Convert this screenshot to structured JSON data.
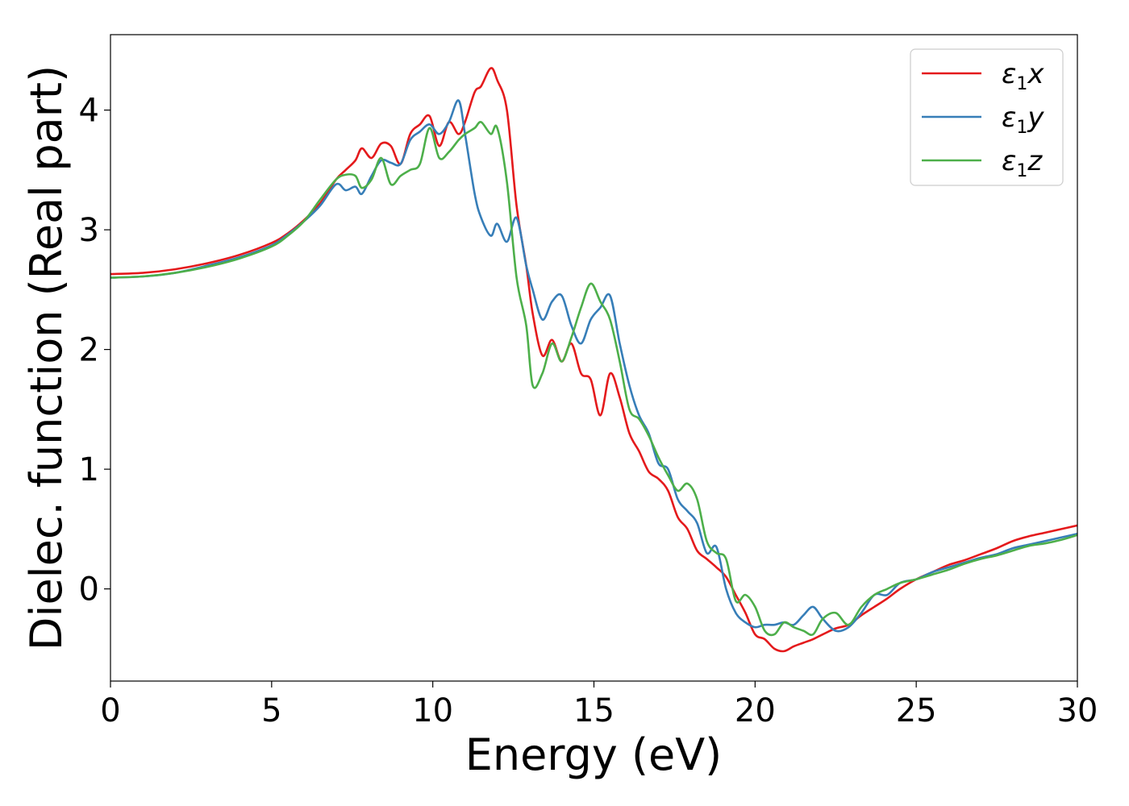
{
  "chart_data": {
    "type": "line",
    "xlabel": "Energy (eV)",
    "ylabel": "Dielec. function (Real part)",
    "xlim": [
      0,
      30
    ],
    "ylim": [
      -0.77,
      4.63
    ],
    "xticks": [
      0,
      5,
      10,
      15,
      20,
      25,
      30
    ],
    "yticks": [
      0,
      1,
      2,
      3,
      4
    ],
    "xtick_labels": [
      "0",
      "5",
      "10",
      "15",
      "20",
      "25",
      "30"
    ],
    "ytick_labels": [
      "0",
      "1",
      "2",
      "3",
      "4"
    ],
    "grid": false,
    "legend_position": "top-right",
    "series": [
      {
        "name": "ε₁x",
        "legend_base": "ε",
        "legend_sub": "1",
        "legend_suffix": "x",
        "color": "#e41a1c",
        "x": [
          0,
          1,
          2,
          3,
          4,
          5,
          5.5,
          6,
          6.5,
          7,
          7.3,
          7.6,
          7.8,
          8.1,
          8.4,
          8.7,
          9.0,
          9.3,
          9.6,
          9.9,
          10.2,
          10.5,
          10.8,
          11.0,
          11.3,
          11.5,
          11.8,
          12.0,
          12.3,
          12.6,
          12.9,
          13.1,
          13.4,
          13.7,
          14.0,
          14.3,
          14.6,
          14.9,
          15.2,
          15.5,
          15.8,
          16.1,
          16.4,
          16.7,
          17.0,
          17.3,
          17.6,
          17.9,
          18.2,
          18.5,
          18.8,
          19.1,
          19.4,
          19.7,
          20.0,
          20.3,
          20.6,
          20.9,
          21.2,
          21.5,
          21.8,
          22.1,
          22.5,
          22.9,
          23.3,
          23.7,
          24.1,
          24.5,
          25.0,
          25.5,
          26.0,
          26.5,
          27.0,
          27.5,
          28.0,
          28.5,
          29.0,
          29.5,
          30.0
        ],
        "y": [
          2.63,
          2.64,
          2.67,
          2.72,
          2.79,
          2.89,
          2.97,
          3.08,
          3.22,
          3.42,
          3.5,
          3.58,
          3.68,
          3.6,
          3.72,
          3.7,
          3.55,
          3.8,
          3.88,
          3.95,
          3.7,
          3.9,
          3.8,
          3.9,
          4.15,
          4.2,
          4.35,
          4.25,
          4.0,
          3.2,
          2.7,
          2.3,
          1.95,
          2.08,
          1.9,
          2.05,
          1.8,
          1.75,
          1.45,
          1.8,
          1.6,
          1.3,
          1.15,
          0.98,
          0.92,
          0.82,
          0.6,
          0.5,
          0.32,
          0.25,
          0.18,
          0.1,
          -0.05,
          -0.2,
          -0.38,
          -0.42,
          -0.5,
          -0.52,
          -0.48,
          -0.45,
          -0.42,
          -0.38,
          -0.33,
          -0.3,
          -0.22,
          -0.15,
          -0.08,
          0.0,
          0.08,
          0.14,
          0.2,
          0.24,
          0.29,
          0.34,
          0.4,
          0.44,
          0.47,
          0.5,
          0.53
        ]
      },
      {
        "name": "ε₁y",
        "legend_base": "ε",
        "legend_sub": "1",
        "legend_suffix": "y",
        "color": "#377eb8",
        "x": [
          0,
          1,
          2,
          3,
          4,
          5,
          5.5,
          6,
          6.5,
          7,
          7.3,
          7.6,
          7.8,
          8.1,
          8.4,
          8.7,
          9.0,
          9.3,
          9.6,
          9.9,
          10.2,
          10.5,
          10.8,
          11.0,
          11.3,
          11.5,
          11.8,
          12.0,
          12.3,
          12.6,
          12.9,
          13.1,
          13.4,
          13.7,
          14.0,
          14.3,
          14.6,
          14.9,
          15.2,
          15.5,
          15.8,
          16.1,
          16.4,
          16.7,
          17.0,
          17.3,
          17.6,
          17.9,
          18.2,
          18.5,
          18.8,
          19.1,
          19.4,
          19.7,
          20.0,
          20.3,
          20.6,
          20.9,
          21.2,
          21.5,
          21.8,
          22.1,
          22.5,
          22.9,
          23.3,
          23.7,
          24.1,
          24.5,
          25.0,
          25.5,
          26.0,
          26.5,
          27.0,
          27.5,
          28.0,
          28.5,
          29.0,
          29.5,
          30.0
        ],
        "y": [
          2.6,
          2.61,
          2.64,
          2.7,
          2.77,
          2.87,
          2.96,
          3.07,
          3.2,
          3.38,
          3.33,
          3.36,
          3.3,
          3.45,
          3.58,
          3.56,
          3.55,
          3.75,
          3.82,
          3.88,
          3.8,
          3.9,
          4.08,
          3.8,
          3.3,
          3.1,
          2.95,
          3.05,
          2.9,
          3.1,
          2.7,
          2.5,
          2.25,
          2.4,
          2.45,
          2.2,
          2.05,
          2.25,
          2.35,
          2.45,
          2.05,
          1.7,
          1.45,
          1.3,
          1.05,
          1.0,
          0.75,
          0.65,
          0.55,
          0.3,
          0.35,
          0.0,
          -0.2,
          -0.28,
          -0.32,
          -0.3,
          -0.3,
          -0.28,
          -0.3,
          -0.22,
          -0.15,
          -0.25,
          -0.35,
          -0.32,
          -0.2,
          -0.05,
          -0.05,
          0.05,
          0.08,
          0.14,
          0.18,
          0.22,
          0.26,
          0.29,
          0.34,
          0.37,
          0.4,
          0.43,
          0.46
        ]
      },
      {
        "name": "ε₁z",
        "legend_base": "ε",
        "legend_sub": "1",
        "legend_suffix": "z",
        "color": "#4daf4a",
        "x": [
          0,
          1,
          2,
          3,
          4,
          5,
          5.5,
          6,
          6.5,
          7,
          7.3,
          7.6,
          7.8,
          8.1,
          8.4,
          8.7,
          9.0,
          9.3,
          9.6,
          9.9,
          10.2,
          10.5,
          10.8,
          11.0,
          11.3,
          11.5,
          11.8,
          12.0,
          12.3,
          12.6,
          12.9,
          13.1,
          13.4,
          13.7,
          14.0,
          14.3,
          14.6,
          14.9,
          15.2,
          15.5,
          15.8,
          16.1,
          16.4,
          16.7,
          17.0,
          17.3,
          17.6,
          17.9,
          18.2,
          18.5,
          18.8,
          19.1,
          19.4,
          19.7,
          20.0,
          20.3,
          20.6,
          20.9,
          21.2,
          21.5,
          21.8,
          22.1,
          22.5,
          22.9,
          23.3,
          23.7,
          24.1,
          24.5,
          25.0,
          25.5,
          26.0,
          26.5,
          27.0,
          27.5,
          28.0,
          28.5,
          29.0,
          29.5,
          30.0
        ],
        "y": [
          2.6,
          2.61,
          2.64,
          2.69,
          2.76,
          2.86,
          2.95,
          3.07,
          3.25,
          3.42,
          3.46,
          3.45,
          3.35,
          3.42,
          3.6,
          3.38,
          3.45,
          3.5,
          3.55,
          3.85,
          3.6,
          3.65,
          3.75,
          3.8,
          3.85,
          3.9,
          3.8,
          3.85,
          3.4,
          2.6,
          2.2,
          1.7,
          1.8,
          2.05,
          1.9,
          2.1,
          2.35,
          2.55,
          2.4,
          2.25,
          1.9,
          1.5,
          1.42,
          1.28,
          1.1,
          0.95,
          0.82,
          0.88,
          0.75,
          0.4,
          0.3,
          0.25,
          -0.1,
          -0.05,
          -0.15,
          -0.35,
          -0.38,
          -0.28,
          -0.32,
          -0.35,
          -0.38,
          -0.25,
          -0.2,
          -0.3,
          -0.15,
          -0.05,
          0.0,
          0.05,
          0.08,
          0.12,
          0.16,
          0.21,
          0.25,
          0.28,
          0.32,
          0.36,
          0.38,
          0.41,
          0.45
        ]
      }
    ]
  }
}
